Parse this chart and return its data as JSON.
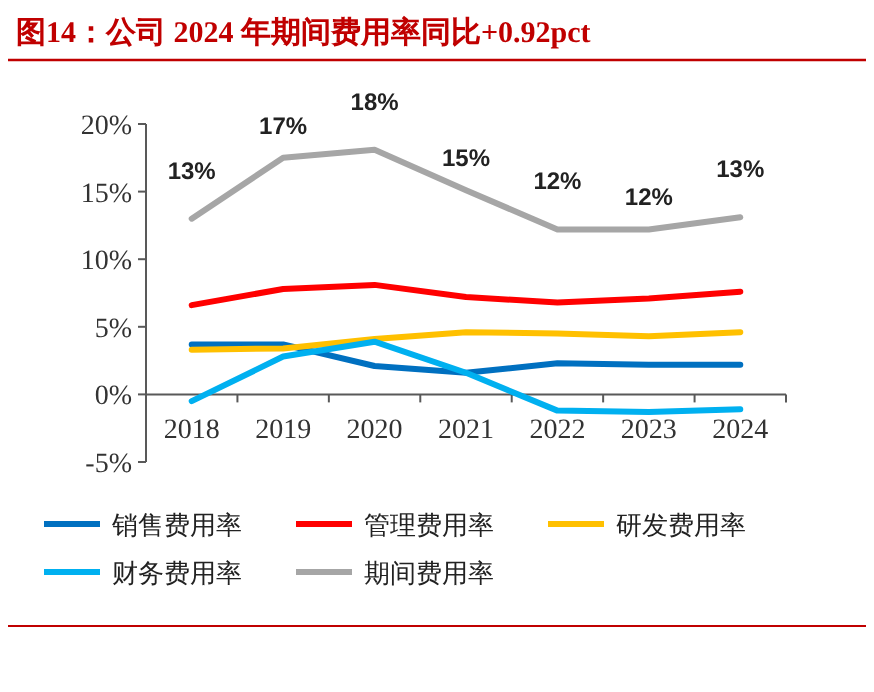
{
  "chart_data": {
    "type": "line",
    "title": "图14：公司 2024 年期间费用率同比+0.92pct",
    "categories": [
      "2018",
      "2019",
      "2020",
      "2021",
      "2022",
      "2023",
      "2024"
    ],
    "series": [
      {
        "name": "销售费用率",
        "color": "#0070c0",
        "values": [
          3.7,
          3.7,
          2.1,
          1.6,
          2.3,
          2.2,
          2.2
        ]
      },
      {
        "name": "管理费用率",
        "color": "#ff0000",
        "values": [
          6.6,
          7.8,
          8.1,
          7.2,
          6.8,
          7.1,
          7.6
        ]
      },
      {
        "name": "研发费用率",
        "color": "#ffc000",
        "values": [
          3.3,
          3.4,
          4.1,
          4.6,
          4.5,
          4.3,
          4.6
        ]
      },
      {
        "name": "财务费用率",
        "color": "#00b0f0",
        "values": [
          -0.5,
          2.8,
          3.9,
          1.6,
          -1.2,
          -1.3,
          -1.1
        ]
      },
      {
        "name": "期间费用率",
        "color": "#a6a6a6",
        "values": [
          13.0,
          17.5,
          18.1,
          15.1,
          12.2,
          12.2,
          13.1
        ],
        "value_labels": [
          "13%",
          "17%",
          "18%",
          "15%",
          "12%",
          "12%",
          "13%"
        ]
      }
    ],
    "ylim": [
      -5,
      20
    ],
    "yticks": [
      {
        "value": -5,
        "label": "-5%"
      },
      {
        "value": 0,
        "label": "0%"
      },
      {
        "value": 5,
        "label": "5%"
      },
      {
        "value": 10,
        "label": "10%"
      },
      {
        "value": 15,
        "label": "15%"
      },
      {
        "value": 20,
        "label": "20%"
      }
    ],
    "grid": false,
    "legend": "bottom",
    "marker": "none",
    "line_style": "solid"
  }
}
